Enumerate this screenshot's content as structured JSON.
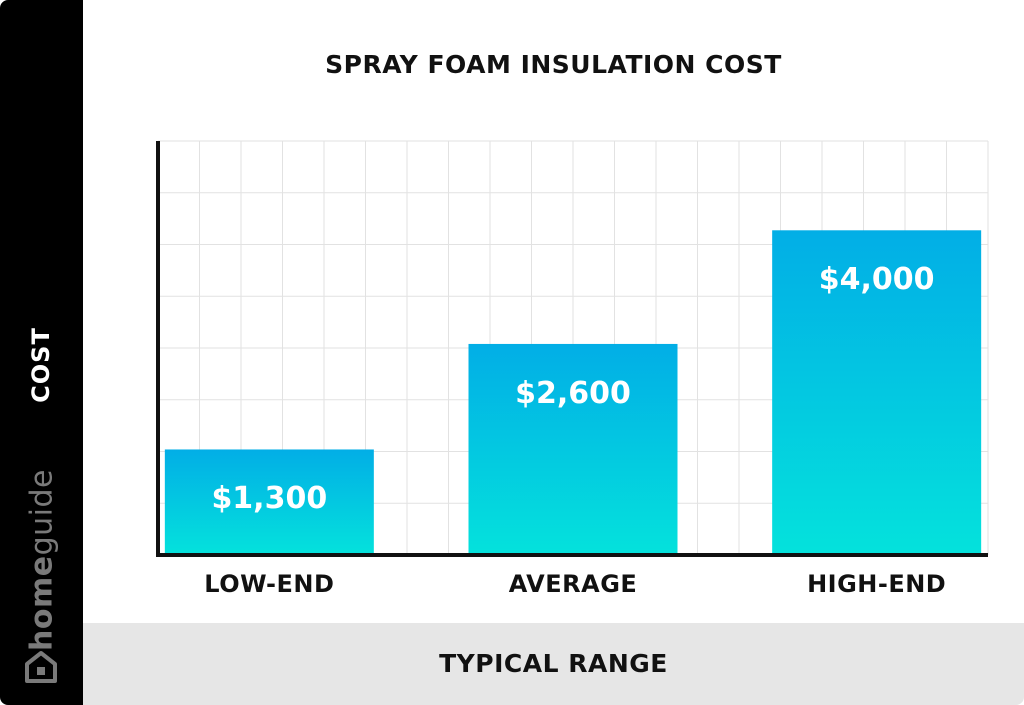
{
  "chart_data": {
    "type": "bar",
    "title": "SPRAY FOAM INSULATION COST",
    "xlabel": "TYPICAL RANGE",
    "ylabel": "COST",
    "categories": [
      "LOW-END",
      "AVERAGE",
      "HIGH-END"
    ],
    "values": [
      1300,
      2600,
      4000
    ],
    "value_labels": [
      "$1,300",
      "$2,600",
      "$4,000"
    ],
    "ylim": [
      0,
      5100
    ],
    "grid": true,
    "colors": {
      "bar_top": "#02aee6",
      "bar_bottom": "#04e2dc",
      "grid": "#e2e2e2",
      "axis": "#111111"
    }
  },
  "brand": {
    "name_part1": "home",
    "name_part2": "guide",
    "icon": "house-icon",
    "color": "#7a7a7a"
  }
}
